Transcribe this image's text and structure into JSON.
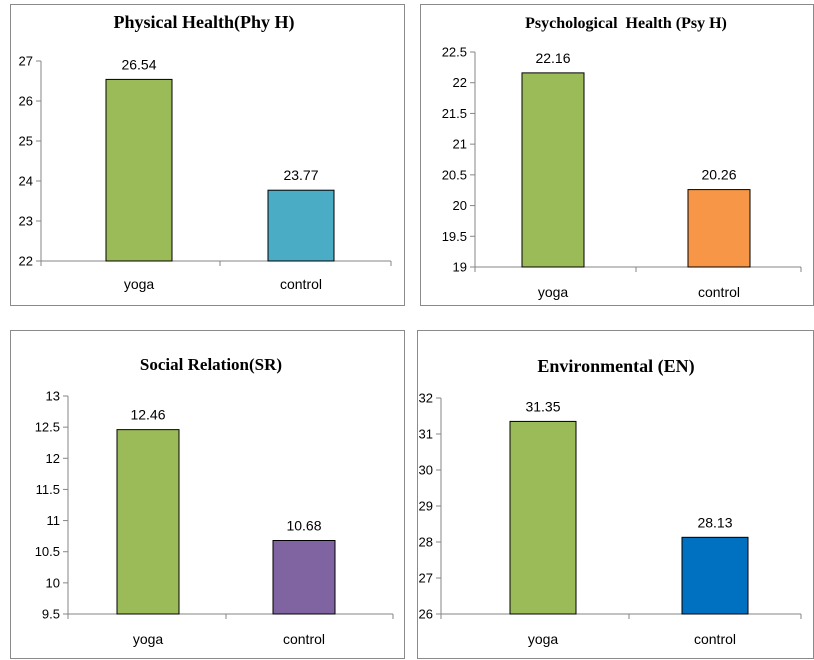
{
  "chart_data": [
    {
      "type": "bar",
      "title": "Physical Health(Phy H)",
      "categories": [
        "yoga",
        "control"
      ],
      "values": [
        26.54,
        23.77
      ],
      "data_labels": [
        "26.54",
        "23.77"
      ],
      "ylim": [
        22,
        27
      ],
      "yticks": [
        22,
        23,
        24,
        25,
        26,
        27
      ],
      "ytick_labels": [
        "22",
        "23",
        "24",
        "25",
        "26",
        "27"
      ],
      "colors": [
        "#9BBB59",
        "#4BACC6"
      ],
      "grid": false,
      "legend": "none"
    },
    {
      "type": "bar",
      "title": "Psychological  Health (Psy H)",
      "categories": [
        "yoga",
        "control"
      ],
      "values": [
        22.16,
        20.26
      ],
      "data_labels": [
        "22.16",
        "20.26"
      ],
      "ylim": [
        19,
        22.5
      ],
      "yticks": [
        19,
        19.5,
        20,
        20.5,
        21,
        21.5,
        22,
        22.5
      ],
      "ytick_labels": [
        "19",
        "19.5",
        "20",
        "20.5",
        "21",
        "21.5",
        "22",
        "22.5"
      ],
      "colors": [
        "#9BBB59",
        "#F79646"
      ],
      "grid": false,
      "legend": "none"
    },
    {
      "type": "bar",
      "title": "Social Relation(SR)",
      "categories": [
        "yoga",
        "control"
      ],
      "values": [
        12.46,
        10.68
      ],
      "data_labels": [
        "12.46",
        "10.68"
      ],
      "ylim": [
        9.5,
        13
      ],
      "yticks": [
        9.5,
        10,
        10.5,
        11,
        11.5,
        12,
        12.5,
        13
      ],
      "ytick_labels": [
        "9.5",
        "10",
        "10.5",
        "11",
        "11.5",
        "12",
        "12.5",
        "13"
      ],
      "colors": [
        "#9BBB59",
        "#8064A2"
      ],
      "grid": false,
      "legend": "none"
    },
    {
      "type": "bar",
      "title": "Environmental (EN)",
      "categories": [
        "yoga",
        "control"
      ],
      "values": [
        31.35,
        28.13
      ],
      "data_labels": [
        "31.35",
        "28.13"
      ],
      "ylim": [
        26,
        32
      ],
      "yticks": [
        26,
        27,
        28,
        29,
        30,
        31,
        32
      ],
      "ytick_labels": [
        "26",
        "27",
        "28",
        "29",
        "30",
        "31",
        "32"
      ],
      "colors": [
        "#9BBB59",
        "#0070C0"
      ],
      "grid": false,
      "legend": "none"
    }
  ]
}
